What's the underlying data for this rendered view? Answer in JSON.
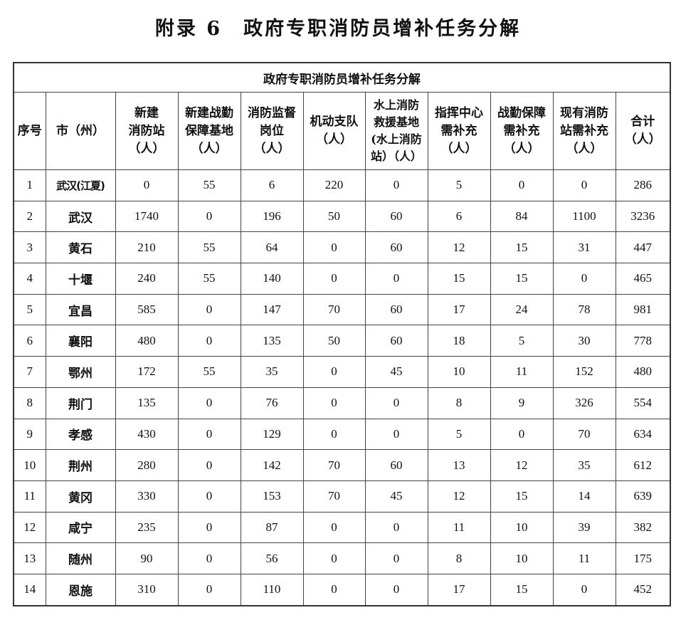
{
  "document": {
    "title_prefix": "附录 6",
    "title": "政府专职消防员增补任务分解"
  },
  "table": {
    "caption": "政府专职消防员增补任务分解",
    "headers": [
      "序号",
      "市（州）",
      "新建\n消防站\n（人）",
      "新建战勤\n保障基地\n（人）",
      "消防监督\n岗位\n（人）",
      "机动支队\n（人）",
      "水上消防\n救援基地\n(水上消防\n站）（人）",
      "指挥中心\n需补充\n（人）",
      "战勤保障\n需补充\n（人）",
      "现有消防\n站需补充\n（人）",
      "合计\n（人）"
    ],
    "rows": [
      [
        "1",
        "武汉(江夏)",
        "0",
        "55",
        "6",
        "220",
        "0",
        "5",
        "0",
        "0",
        "286"
      ],
      [
        "2",
        "武汉",
        "1740",
        "0",
        "196",
        "50",
        "60",
        "6",
        "84",
        "1100",
        "3236"
      ],
      [
        "3",
        "黄石",
        "210",
        "55",
        "64",
        "0",
        "60",
        "12",
        "15",
        "31",
        "447"
      ],
      [
        "4",
        "十堰",
        "240",
        "55",
        "140",
        "0",
        "0",
        "15",
        "15",
        "0",
        "465"
      ],
      [
        "5",
        "宜昌",
        "585",
        "0",
        "147",
        "70",
        "60",
        "17",
        "24",
        "78",
        "981"
      ],
      [
        "6",
        "襄阳",
        "480",
        "0",
        "135",
        "50",
        "60",
        "18",
        "5",
        "30",
        "778"
      ],
      [
        "7",
        "鄂州",
        "172",
        "55",
        "35",
        "0",
        "45",
        "10",
        "11",
        "152",
        "480"
      ],
      [
        "8",
        "荆门",
        "135",
        "0",
        "76",
        "0",
        "0",
        "8",
        "9",
        "326",
        "554"
      ],
      [
        "9",
        "孝感",
        "430",
        "0",
        "129",
        "0",
        "0",
        "5",
        "0",
        "70",
        "634"
      ],
      [
        "10",
        "荆州",
        "280",
        "0",
        "142",
        "70",
        "60",
        "13",
        "12",
        "35",
        "612"
      ],
      [
        "11",
        "黄冈",
        "330",
        "0",
        "153",
        "70",
        "45",
        "12",
        "15",
        "14",
        "639"
      ],
      [
        "12",
        "咸宁",
        "235",
        "0",
        "87",
        "0",
        "0",
        "11",
        "10",
        "39",
        "382"
      ],
      [
        "13",
        "随州",
        "90",
        "0",
        "56",
        "0",
        "0",
        "8",
        "10",
        "11",
        "175"
      ],
      [
        "14",
        "恩施",
        "310",
        "0",
        "110",
        "0",
        "0",
        "17",
        "15",
        "0",
        "452"
      ]
    ]
  }
}
